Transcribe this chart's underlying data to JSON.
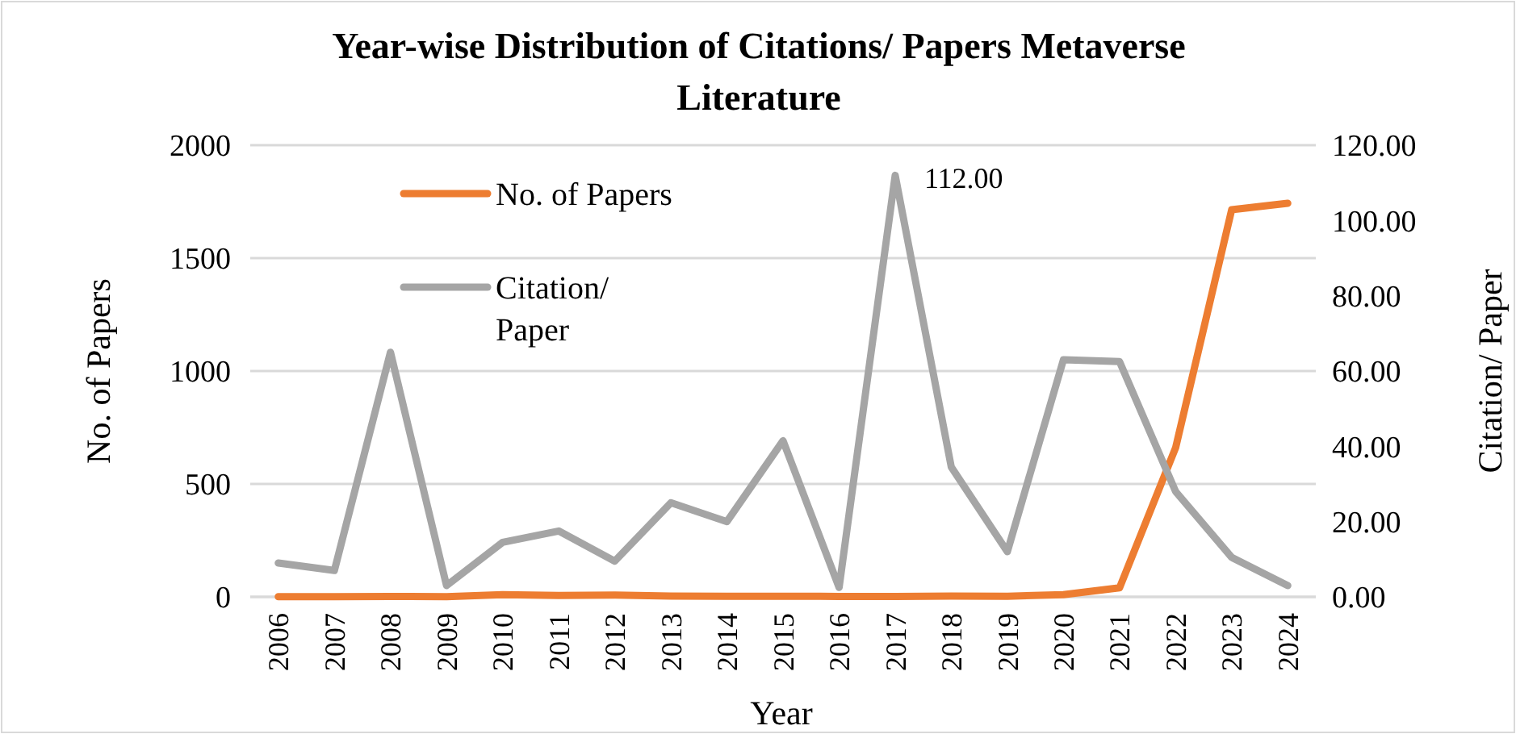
{
  "chart_data": {
    "type": "line",
    "title": "Year-wise Distribution of Citations/ Papers Metaverse Literature",
    "xlabel": "Year",
    "ylabel": "No. of Papers",
    "y2label": "Citation/ Paper",
    "categories": [
      "2006",
      "2007",
      "2008",
      "2009",
      "2010",
      "2011",
      "2012",
      "2013",
      "2014",
      "2015",
      "2016",
      "2017",
      "2018",
      "2019",
      "2020",
      "2021",
      "2022",
      "2023",
      "2024"
    ],
    "series": [
      {
        "name": "No. of Papers",
        "color": "#ed7d31",
        "values": [
          1,
          1,
          2,
          1,
          10,
          6,
          8,
          4,
          3,
          3,
          2,
          2,
          4,
          3,
          10,
          40,
          660,
          1714,
          1743
        ]
      },
      {
        "name": "Citation/ Paper",
        "color": "#a5a5a5",
        "axis": "y2",
        "values": [
          9,
          7,
          65,
          3,
          14.5,
          17.5,
          9.5,
          25,
          20,
          41.5,
          2.5,
          112,
          34.5,
          12,
          63,
          62.5,
          28,
          10.5,
          3
        ],
        "value_labels": [
          null,
          null,
          null,
          null,
          null,
          null,
          null,
          null,
          null,
          null,
          null,
          "112.00",
          null,
          null,
          null,
          null,
          null,
          null,
          null
        ]
      }
    ],
    "ylim": [
      0,
      2000
    ],
    "yticks": [
      0,
      500,
      1000,
      1500,
      2000
    ],
    "y2lim": [
      0,
      120
    ],
    "y2ticks": [
      {
        "value": 0,
        "label": "0.00"
      },
      {
        "value": 20,
        "label": "20.00"
      },
      {
        "value": 40,
        "label": "40.00"
      },
      {
        "value": 60,
        "label": "60.00"
      },
      {
        "value": 80,
        "label": "80.00"
      },
      {
        "value": 100,
        "label": "100.00"
      },
      {
        "value": 120,
        "label": "120.00"
      }
    ],
    "grid": "y",
    "legend": "top left",
    "line_style": "solid",
    "marker": "none"
  }
}
